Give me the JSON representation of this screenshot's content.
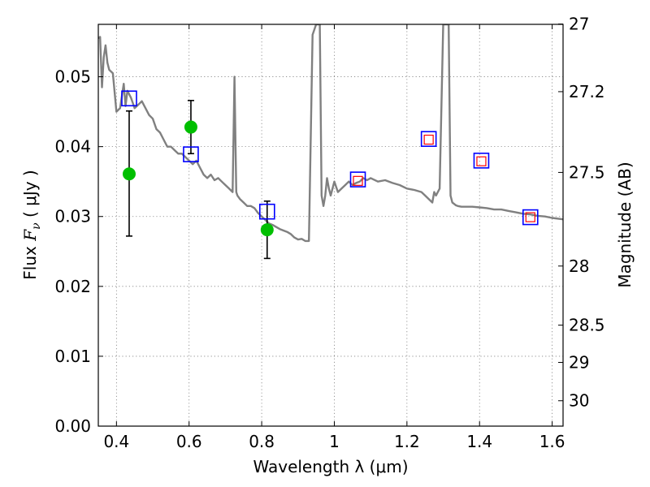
{
  "chart_data": {
    "type": "scatter",
    "xlabel": "Wavelength  λ (μm)",
    "ylabel": "Flux  F_ν  ( μJy )",
    "ylabel_parts": {
      "prefix": "Flux  ",
      "symbol": "F",
      "subscript": "ν",
      "suffix": "  ( μJy )"
    },
    "y2label": "Magnitude (AB)",
    "xlim": [
      0.35,
      1.63
    ],
    "ylim": [
      0.0,
      0.0575
    ],
    "grid": true,
    "x_ticks": [
      0.4,
      0.6,
      0.8,
      1.0,
      1.2,
      1.4,
      1.6
    ],
    "x_tick_labels": [
      "0.4",
      "0.6",
      "0.8",
      "1",
      "1.2",
      "1.4",
      "1.6"
    ],
    "y_ticks": [
      0.0,
      0.01,
      0.02,
      0.03,
      0.04,
      0.05
    ],
    "y_tick_labels": [
      "0.00",
      "0.01",
      "0.02",
      "0.03",
      "0.04",
      "0.05"
    ],
    "y2_ticks": [
      27,
      27.2,
      27.5,
      28,
      28.5,
      29,
      30
    ],
    "y2_tick_labels": [
      "27",
      "27.2",
      "27.5",
      "28",
      "28.5",
      "29",
      "30"
    ],
    "colors": {
      "model": "#808080",
      "observed": "#00bf00",
      "errorbar": "#000000",
      "model_band": "#0000ff",
      "red_square": "#ff0000",
      "grid": "#808080"
    },
    "series": [
      {
        "style": "line",
        "x": [
          0.35,
          0.355,
          0.36,
          0.365,
          0.37,
          0.375,
          0.38,
          0.39,
          0.4,
          0.41,
          0.42,
          0.425,
          0.43,
          0.44,
          0.45,
          0.46,
          0.47,
          0.48,
          0.49,
          0.5,
          0.51,
          0.52,
          0.53,
          0.54,
          0.55,
          0.56,
          0.57,
          0.58,
          0.59,
          0.6,
          0.61,
          0.62,
          0.63,
          0.64,
          0.65,
          0.66,
          0.67,
          0.68,
          0.69,
          0.7,
          0.71,
          0.72,
          0.725,
          0.728,
          0.73,
          0.733,
          0.74,
          0.75,
          0.76,
          0.77,
          0.78,
          0.79,
          0.8,
          0.81,
          0.82,
          0.83,
          0.84,
          0.85,
          0.86,
          0.87,
          0.88,
          0.89,
          0.9,
          0.91,
          0.92,
          0.93,
          0.94,
          0.95,
          0.96,
          0.965,
          0.97,
          0.975,
          0.98,
          0.985,
          0.99,
          1.0,
          1.01,
          1.02,
          1.03,
          1.04,
          1.05,
          1.06,
          1.07,
          1.08,
          1.09,
          1.1,
          1.12,
          1.14,
          1.16,
          1.18,
          1.2,
          1.22,
          1.24,
          1.25,
          1.26,
          1.27,
          1.275,
          1.28,
          1.29,
          1.3,
          1.31,
          1.315,
          1.32,
          1.325,
          1.33,
          1.335,
          1.34,
          1.35,
          1.36,
          1.37,
          1.38,
          1.4,
          1.42,
          1.44,
          1.46,
          1.48,
          1.5,
          1.52,
          1.54,
          1.56,
          1.58,
          1.6,
          1.63
        ],
        "y": [
          0.0555,
          0.0557,
          0.0485,
          0.0528,
          0.0545,
          0.052,
          0.051,
          0.0505,
          0.045,
          0.0455,
          0.049,
          0.0458,
          0.048,
          0.047,
          0.0455,
          0.046,
          0.0465,
          0.0455,
          0.0445,
          0.044,
          0.0425,
          0.042,
          0.041,
          0.04,
          0.04,
          0.0395,
          0.039,
          0.039,
          0.0385,
          0.038,
          0.0375,
          0.038,
          0.037,
          0.036,
          0.0355,
          0.036,
          0.0352,
          0.0355,
          0.035,
          0.0345,
          0.034,
          0.0335,
          0.05,
          0.04,
          0.0335,
          0.033,
          0.0325,
          0.032,
          0.0315,
          0.0315,
          0.0312,
          0.0305,
          0.03,
          0.0295,
          0.029,
          0.0288,
          0.0285,
          0.0282,
          0.028,
          0.0278,
          0.0275,
          0.027,
          0.0267,
          0.0268,
          0.0265,
          0.0265,
          0.056,
          0.0575,
          0.0575,
          0.033,
          0.0315,
          0.033,
          0.0355,
          0.034,
          0.033,
          0.035,
          0.0335,
          0.034,
          0.0345,
          0.035,
          0.0345,
          0.0348,
          0.035,
          0.0355,
          0.0352,
          0.0355,
          0.035,
          0.0352,
          0.0348,
          0.0345,
          0.034,
          0.0338,
          0.0335,
          0.033,
          0.0325,
          0.032,
          0.0335,
          0.033,
          0.034,
          0.0575,
          0.0575,
          0.0575,
          0.033,
          0.032,
          0.0318,
          0.0316,
          0.0315,
          0.0314,
          0.0314,
          0.0314,
          0.0314,
          0.0313,
          0.0312,
          0.031,
          0.031,
          0.0308,
          0.0306,
          0.0304,
          0.0303,
          0.0301,
          0.03,
          0.0298,
          0.0296
        ]
      },
      {
        "style": "points",
        "x": [
          0.435,
          0.605,
          0.815
        ],
        "y": [
          0.0361,
          0.0428,
          0.0281
        ],
        "yerr_low": [
          0.0272,
          0.039,
          0.024
        ],
        "yerr_high": [
          0.0451,
          0.0466,
          0.0322
        ]
      },
      {
        "style": "open-squares",
        "x": [
          0.435,
          0.605,
          0.815,
          1.065,
          1.26,
          1.405,
          1.54
        ],
        "y": [
          0.0469,
          0.0389,
          0.0307,
          0.0353,
          0.0411,
          0.038,
          0.0299
        ]
      },
      {
        "style": "small-squares",
        "x": [
          1.065,
          1.26,
          1.405,
          1.54
        ],
        "y": [
          0.0351,
          0.041,
          0.0379,
          0.0299
        ]
      }
    ]
  }
}
